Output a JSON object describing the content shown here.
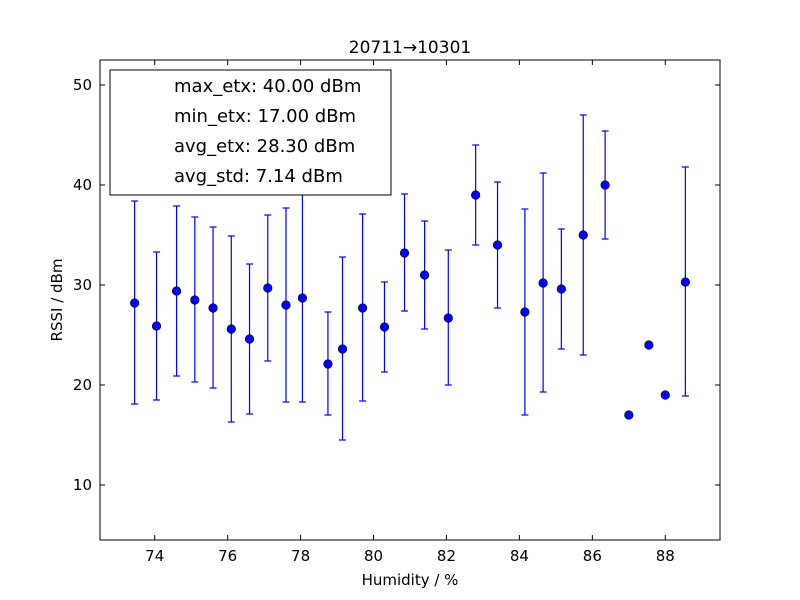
{
  "chart_data": {
    "type": "scatter",
    "title": "20711→10301",
    "xlabel": "Humidity / %",
    "ylabel": "RSSI / dBm",
    "xlim": [
      72.5,
      89.5
    ],
    "ylim": [
      4.5,
      52.5
    ],
    "xticks": [
      74,
      76,
      78,
      80,
      82,
      84,
      86,
      88
    ],
    "yticks": [
      10,
      20,
      30,
      40,
      50
    ],
    "grid": false,
    "legend_position": "top-left",
    "marker_color": "#0000ff",
    "legend": [
      "max_etx: 40.00 dBm",
      "min_etx: 17.00 dBm",
      "avg_etx: 28.30 dBm",
      "avg_std: 7.14 dBm"
    ],
    "points": [
      {
        "x": 73.45,
        "y": 28.2,
        "err_low": 18.1,
        "err_high": 38.4
      },
      {
        "x": 74.05,
        "y": 25.9,
        "err_low": 18.5,
        "err_high": 33.3
      },
      {
        "x": 74.6,
        "y": 29.4,
        "err_low": 20.9,
        "err_high": 37.9
      },
      {
        "x": 75.1,
        "y": 28.5,
        "err_low": 20.3,
        "err_high": 36.8
      },
      {
        "x": 75.6,
        "y": 27.7,
        "err_low": 19.7,
        "err_high": 35.8
      },
      {
        "x": 76.1,
        "y": 25.6,
        "err_low": 16.3,
        "err_high": 34.9
      },
      {
        "x": 76.6,
        "y": 24.6,
        "err_low": 17.1,
        "err_high": 32.1
      },
      {
        "x": 77.1,
        "y": 29.7,
        "err_low": 22.4,
        "err_high": 37.0
      },
      {
        "x": 77.6,
        "y": 28.0,
        "err_low": 18.3,
        "err_high": 37.7
      },
      {
        "x": 78.05,
        "y": 28.7,
        "err_low": 18.3,
        "err_high": 39.3
      },
      {
        "x": 78.75,
        "y": 22.1,
        "err_low": 17.0,
        "err_high": 27.3
      },
      {
        "x": 79.15,
        "y": 23.6,
        "err_low": 14.5,
        "err_high": 32.8
      },
      {
        "x": 79.7,
        "y": 27.7,
        "err_low": 18.4,
        "err_high": 37.1
      },
      {
        "x": 80.3,
        "y": 25.8,
        "err_low": 21.3,
        "err_high": 30.3
      },
      {
        "x": 80.85,
        "y": 33.2,
        "err_low": 27.4,
        "err_high": 39.1
      },
      {
        "x": 81.4,
        "y": 31.0,
        "err_low": 25.6,
        "err_high": 36.4
      },
      {
        "x": 82.05,
        "y": 26.7,
        "err_low": 20.0,
        "err_high": 33.5
      },
      {
        "x": 82.8,
        "y": 39.0,
        "err_low": 34.0,
        "err_high": 44.0
      },
      {
        "x": 83.4,
        "y": 34.0,
        "err_low": 27.7,
        "err_high": 40.3
      },
      {
        "x": 84.15,
        "y": 27.3,
        "err_low": 17.0,
        "err_high": 37.6
      },
      {
        "x": 84.65,
        "y": 30.2,
        "err_low": 19.3,
        "err_high": 41.2
      },
      {
        "x": 85.15,
        "y": 29.6,
        "err_low": 23.6,
        "err_high": 35.6
      },
      {
        "x": 85.75,
        "y": 35.0,
        "err_low": 23.0,
        "err_high": 47.0
      },
      {
        "x": 86.35,
        "y": 40.0,
        "err_low": 34.6,
        "err_high": 45.4
      },
      {
        "x": 87.0,
        "y": 17.0
      },
      {
        "x": 87.55,
        "y": 24.0
      },
      {
        "x": 88.0,
        "y": 19.0
      },
      {
        "x": 88.55,
        "y": 30.3,
        "err_low": 18.9,
        "err_high": 41.8
      }
    ]
  }
}
